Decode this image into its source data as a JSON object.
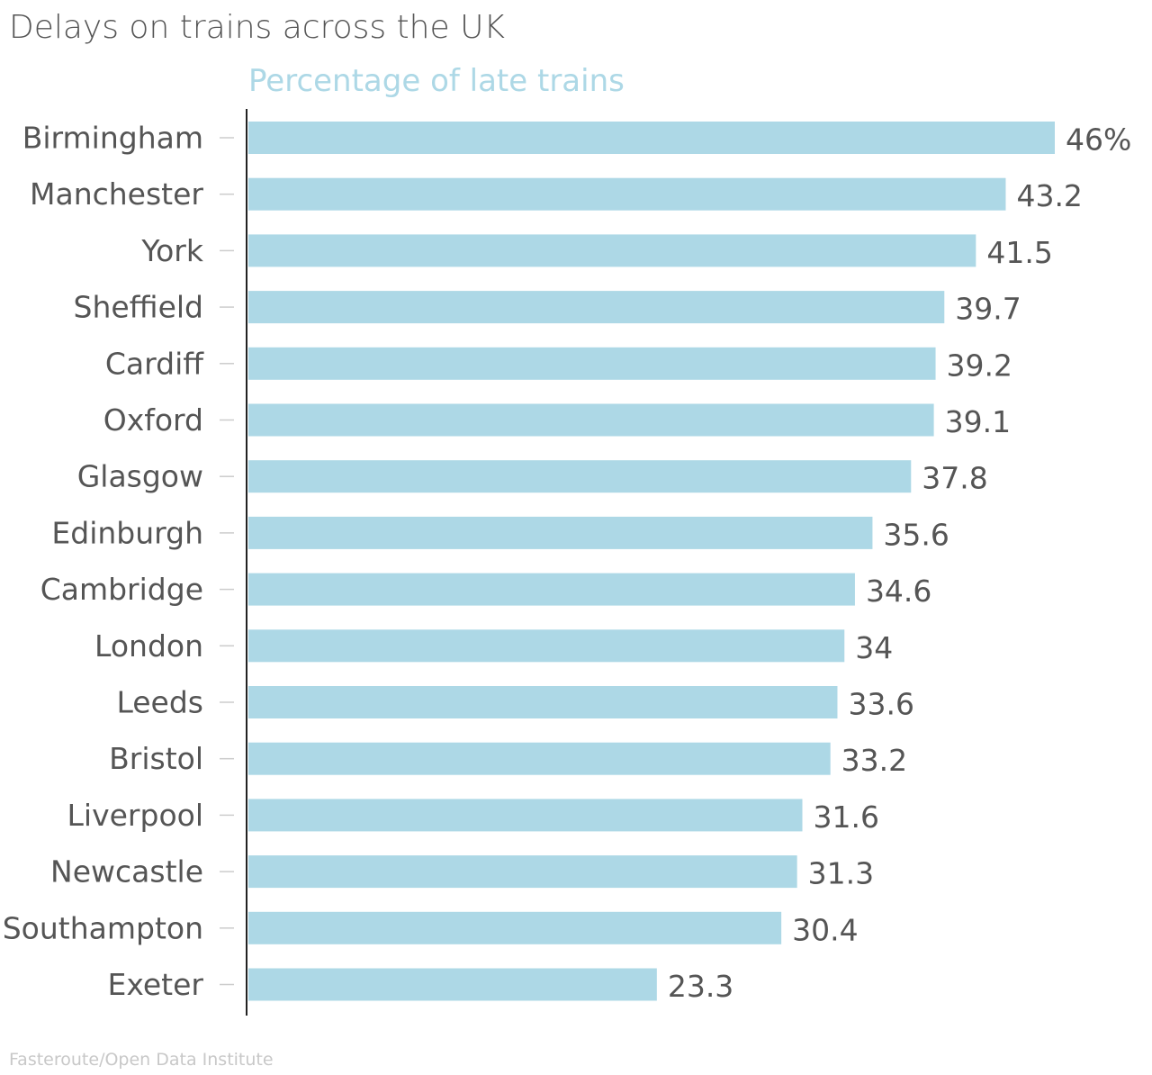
{
  "title": "Delays on trains across the UK",
  "source": "Fasteroute/Open Data Institute",
  "colors": {
    "bar": "#add8e6",
    "subtitle": "#add8e6",
    "title": "#555555",
    "labels": "#555555",
    "value_labels": "#555555",
    "tick": "#cccccc",
    "axis": "#222222",
    "source": "#c8c8c8"
  },
  "chart_data": {
    "type": "bar",
    "orientation": "horizontal",
    "subtitle": "Percentage of late trains",
    "categories": [
      "Birmingham",
      "Manchester",
      "York",
      "Sheffield",
      "Cardiff",
      "Oxford",
      "Glasgow",
      "Edinburgh",
      "Cambridge",
      "London",
      "Leeds",
      "Bristol",
      "Liverpool",
      "Newcastle",
      "Southampton",
      "Exeter"
    ],
    "values": [
      46,
      43.2,
      41.5,
      39.7,
      39.2,
      39.1,
      37.8,
      35.6,
      34.6,
      34,
      33.6,
      33.2,
      31.6,
      31.3,
      30.4,
      23.3
    ],
    "value_labels": [
      "46%",
      "43.2",
      "41.5",
      "39.7",
      "39.2",
      "39.1",
      "37.8",
      "35.6",
      "34.6",
      "34",
      "33.6",
      "33.2",
      "31.6",
      "31.3",
      "30.4",
      "23.3"
    ],
    "xlim": [
      0,
      46
    ],
    "grid": false,
    "legend": "none"
  }
}
